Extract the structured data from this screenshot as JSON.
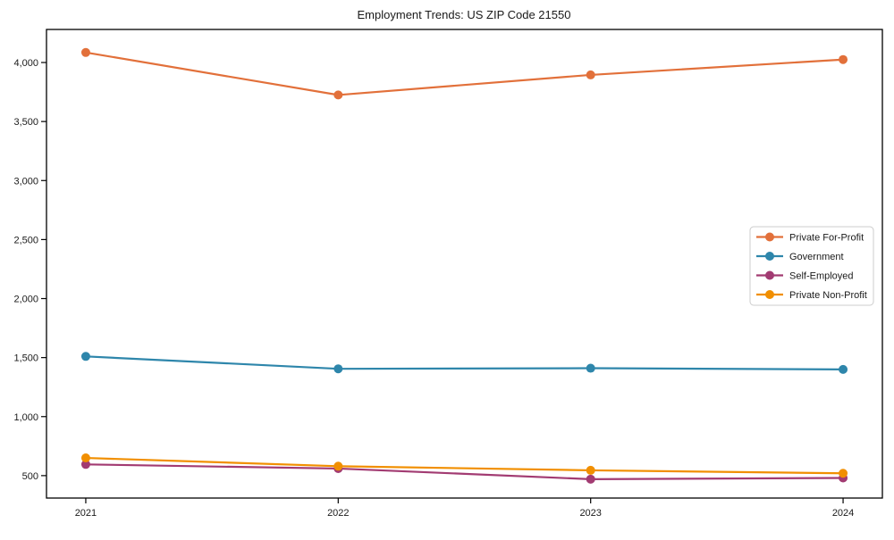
{
  "chart_data": {
    "type": "line",
    "title": "Employment Trends: US ZIP Code 21550",
    "xlabel": "",
    "ylabel": "",
    "x": [
      "2021",
      "2022",
      "2023",
      "2024"
    ],
    "series": [
      {
        "name": "Private For-Profit",
        "color": "#E2703A",
        "values": [
          4085,
          3725,
          3895,
          4025
        ]
      },
      {
        "name": "Government",
        "color": "#2E86AB",
        "values": [
          1510,
          1405,
          1410,
          1400
        ]
      },
      {
        "name": "Self-Employed",
        "color": "#A23B72",
        "values": [
          595,
          560,
          470,
          480
        ]
      },
      {
        "name": "Private Non-Profit",
        "color": "#F18F01",
        "values": [
          650,
          580,
          545,
          520
        ]
      }
    ],
    "ylim": [
      310,
      4280
    ],
    "yticks": [
      500,
      1000,
      1500,
      2000,
      2500,
      3000,
      3500,
      4000
    ],
    "ytick_labels": [
      "500",
      "1,000",
      "1,500",
      "2,000",
      "2,500",
      "3,000",
      "3,500",
      "4,000"
    ],
    "grid": false,
    "legend_position": "center-right",
    "frame_color": "#000000",
    "legend_border_color": "#cccccc",
    "text_color": "#1a1a1a"
  }
}
